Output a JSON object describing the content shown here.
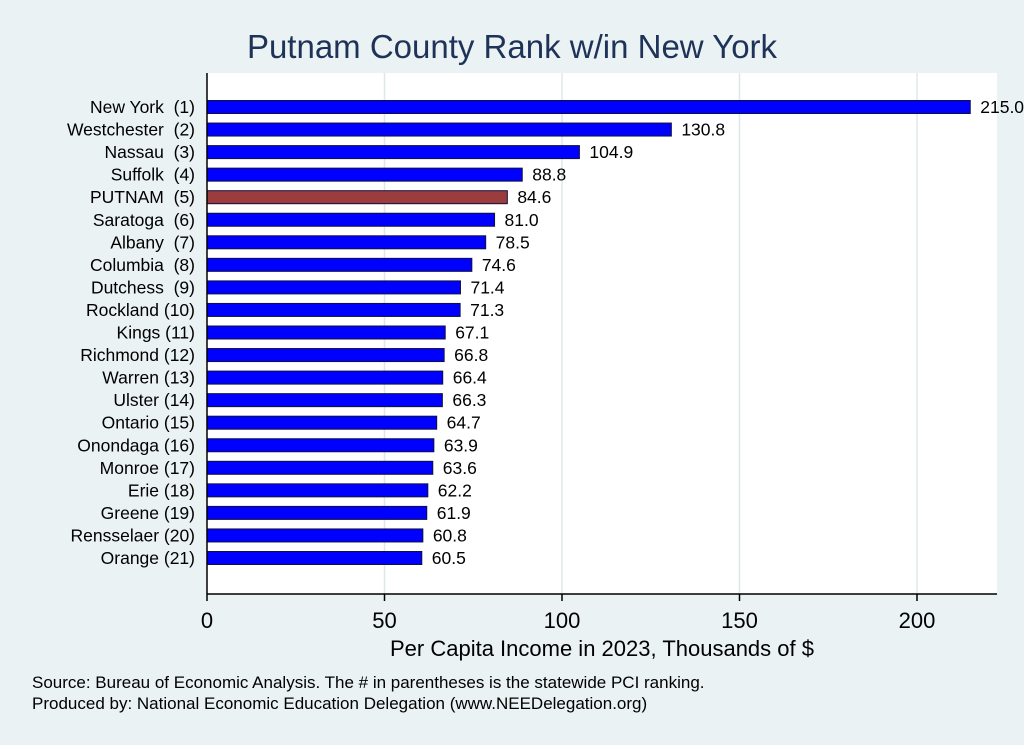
{
  "chart_data": {
    "type": "bar",
    "orientation": "horizontal",
    "title": "Putnam County Rank w/in New York",
    "xlabel": "Per Capita Income in 2023, Thousands of $",
    "ylabel": "",
    "xlim": [
      0,
      222
    ],
    "xticks": [
      0,
      50,
      100,
      150,
      200
    ],
    "xtick_labels": [
      "0",
      "50",
      "100",
      "150",
      "200"
    ],
    "grid": "vertical",
    "categories": [
      "New York  (1)",
      "Westchester  (2)",
      "Nassau  (3)",
      "Suffolk  (4)",
      "PUTNAM  (5)",
      "Saratoga  (6)",
      "Albany  (7)",
      "Columbia  (8)",
      "Dutchess  (9)",
      "Rockland (10)",
      "Kings (11)",
      "Richmond (12)",
      "Warren (13)",
      "Ulster (14)",
      "Ontario (15)",
      "Onondaga (16)",
      "Monroe (17)",
      "Erie (18)",
      "Greene (19)",
      "Rensselaer (20)",
      "Orange (21)"
    ],
    "values": [
      215.0,
      130.8,
      104.9,
      88.8,
      84.6,
      81.0,
      78.5,
      74.6,
      71.4,
      71.3,
      67.1,
      66.8,
      66.4,
      66.3,
      64.7,
      63.9,
      63.6,
      62.2,
      61.9,
      60.8,
      60.5
    ],
    "value_labels": [
      "215.0",
      "130.8",
      "104.9",
      "88.8",
      "84.6",
      "81.0",
      "78.5",
      "74.6",
      "71.4",
      "71.3",
      "67.1",
      "66.8",
      "66.4",
      "66.3",
      "64.7",
      "63.9",
      "63.6",
      "62.2",
      "61.9",
      "60.8",
      "60.5"
    ],
    "highlight_index": 4,
    "colors": {
      "bar": "#0000ff",
      "highlight": "#9b3d3d",
      "bar_edge": "#101040",
      "title": "#1f3359",
      "grid": "#dde8ea"
    }
  },
  "notes": {
    "source": "Source: Bureau of Economic Analysis. The # in parentheses is the statewide PCI ranking.",
    "produced_by": "Produced by: National Economic Education Delegation (www.NEEDelegation.org)"
  }
}
